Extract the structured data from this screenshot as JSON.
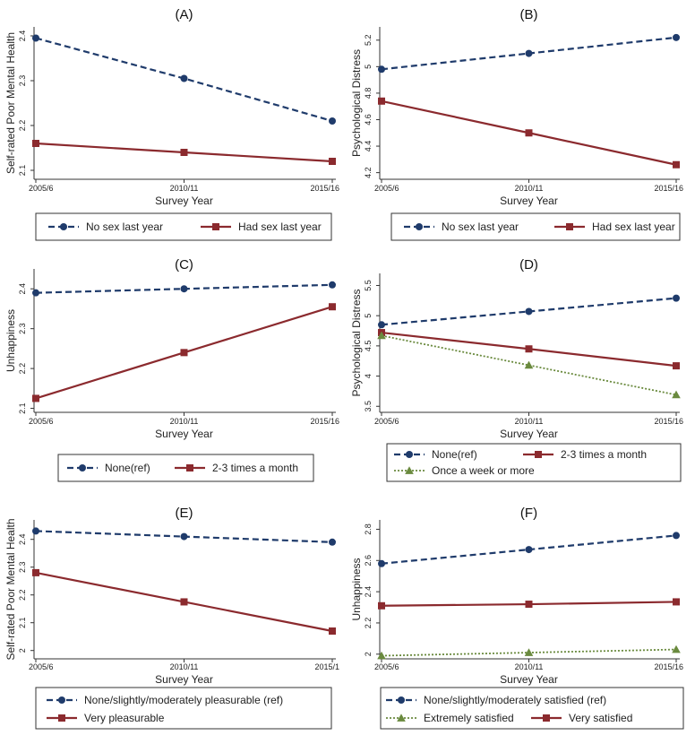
{
  "colors": {
    "blue": "#1f3b6b",
    "red": "#8b2a2e",
    "green": "#6a8a3e"
  },
  "chart_data": [
    {
      "id": "A",
      "type": "line",
      "title": "(A)",
      "ylabel": "Self-rated Poor Mental Health",
      "xlabel": "Survey Year",
      "categories": [
        "2005/6",
        "2010/11",
        "2015/16"
      ],
      "ylim": [
        2.08,
        2.42
      ],
      "yticks": [
        2.1,
        2.2,
        2.3,
        2.4
      ],
      "series": [
        {
          "name": "No sex last year",
          "style": "dash",
          "marker": "circle",
          "color": "#1f3b6b",
          "values": [
            2.395,
            2.305,
            2.21
          ]
        },
        {
          "name": "Had sex last year",
          "style": "solid",
          "marker": "square",
          "color": "#8b2a2e",
          "values": [
            2.16,
            2.14,
            2.12
          ]
        }
      ],
      "legend": [
        {
          "name": "No sex last year",
          "style": "dash",
          "marker": "circle",
          "color": "#1f3b6b"
        },
        {
          "name": "Had sex last year",
          "style": "solid",
          "marker": "square",
          "color": "#8b2a2e"
        }
      ]
    },
    {
      "id": "B",
      "type": "line",
      "title": "(B)",
      "ylabel": "Psychological Distress",
      "xlabel": "Survey Year",
      "categories": [
        "2005/6",
        "2010/11",
        "2015/16"
      ],
      "ylim": [
        4.15,
        5.3
      ],
      "yticks": [
        4.2,
        4.4,
        4.6,
        4.8,
        5,
        5.2
      ],
      "series": [
        {
          "name": "No sex last year",
          "style": "dash",
          "marker": "circle",
          "color": "#1f3b6b",
          "values": [
            4.98,
            5.1,
            5.22
          ]
        },
        {
          "name": "Had sex last year",
          "style": "solid",
          "marker": "square",
          "color": "#8b2a2e",
          "values": [
            4.74,
            4.5,
            4.26
          ]
        }
      ],
      "legend": [
        {
          "name": "No sex last year",
          "style": "dash",
          "marker": "circle",
          "color": "#1f3b6b"
        },
        {
          "name": "Had sex last year",
          "style": "solid",
          "marker": "square",
          "color": "#8b2a2e"
        }
      ]
    },
    {
      "id": "C",
      "type": "line",
      "title": "(C)",
      "ylabel": "Unhappiness",
      "xlabel": "Survey Year",
      "categories": [
        "2005/6",
        "2010/11",
        "2015/16"
      ],
      "ylim": [
        2.09,
        2.45
      ],
      "yticks": [
        2.1,
        2.2,
        2.3,
        2.4
      ],
      "series": [
        {
          "name": "None(ref)",
          "style": "dash",
          "marker": "circle",
          "color": "#1f3b6b",
          "values": [
            2.39,
            2.4,
            2.41
          ]
        },
        {
          "name": "2-3 times a month",
          "style": "solid",
          "marker": "square",
          "color": "#8b2a2e",
          "values": [
            2.125,
            2.24,
            2.355
          ]
        }
      ],
      "legend": [
        {
          "name": "None(ref)",
          "style": "dash",
          "marker": "circle",
          "color": "#1f3b6b"
        },
        {
          "name": "2-3 times a month",
          "style": "solid",
          "marker": "square",
          "color": "#8b2a2e"
        }
      ]
    },
    {
      "id": "D",
      "type": "line",
      "title": "(D)",
      "ylabel": "Psychological Distress",
      "xlabel": "Survey Year",
      "categories": [
        "2005/6",
        "2010/11",
        "2015/16"
      ],
      "ylim": [
        3.4,
        5.7
      ],
      "yticks": [
        3.5,
        4,
        4.5,
        5,
        5.5
      ],
      "series": [
        {
          "name": "None(ref)",
          "style": "dash",
          "marker": "circle",
          "color": "#1f3b6b",
          "values": [
            4.85,
            5.07,
            5.29
          ]
        },
        {
          "name": "2-3 times a month",
          "style": "solid",
          "marker": "square",
          "color": "#8b2a2e",
          "values": [
            4.72,
            4.45,
            4.17
          ]
        },
        {
          "name": "Once a week or more",
          "style": "dot",
          "marker": "triangle",
          "color": "#6a8a3e",
          "values": [
            4.67,
            4.18,
            3.69
          ]
        }
      ],
      "legend": [
        {
          "name": "None(ref)",
          "style": "dash",
          "marker": "circle",
          "color": "#1f3b6b"
        },
        {
          "name": "2-3 times a month",
          "style": "solid",
          "marker": "square",
          "color": "#8b2a2e"
        },
        {
          "name": "Once a week or more",
          "style": "dot",
          "marker": "triangle",
          "color": "#6a8a3e"
        }
      ]
    },
    {
      "id": "E",
      "type": "line",
      "title": "(E)",
      "ylabel": "Self-rated Poor Mental Health",
      "xlabel": "Survey Year",
      "categories": [
        "2005/6",
        "2010/11",
        "2015/1"
      ],
      "ylim": [
        1.97,
        2.47
      ],
      "yticks": [
        2,
        2.1,
        2.2,
        2.3,
        2.4
      ],
      "series": [
        {
          "name": "None/slightly/moderately pleasurable (ref)",
          "style": "dash",
          "marker": "circle",
          "color": "#1f3b6b",
          "values": [
            2.43,
            2.41,
            2.39
          ]
        },
        {
          "name": "Very pleasurable",
          "style": "solid",
          "marker": "square",
          "color": "#8b2a2e",
          "values": [
            2.28,
            2.175,
            2.07
          ]
        }
      ],
      "legend": [
        {
          "name": "None/slightly/moderately pleasurable (ref)",
          "style": "dash",
          "marker": "circle",
          "color": "#1f3b6b"
        },
        {
          "name": "Very pleasurable",
          "style": "solid",
          "marker": "square",
          "color": "#8b2a2e"
        }
      ]
    },
    {
      "id": "F",
      "type": "line",
      "title": "(F)",
      "ylabel": "Unhappiness",
      "xlabel": "Survey Year",
      "categories": [
        "2005/6",
        "2010/11",
        "2015/16"
      ],
      "ylim": [
        1.97,
        2.86
      ],
      "yticks": [
        2,
        2.2,
        2.4,
        2.6,
        2.8
      ],
      "series": [
        {
          "name": "None/slightly/moderately satisfied (ref)",
          "style": "dash",
          "marker": "circle",
          "color": "#1f3b6b",
          "values": [
            2.58,
            2.67,
            2.76
          ]
        },
        {
          "name": "Very satisfied",
          "style": "solid",
          "marker": "square",
          "color": "#8b2a2e",
          "values": [
            2.31,
            2.32,
            2.335
          ]
        },
        {
          "name": "Extremely satisfied",
          "style": "dot",
          "marker": "triangle",
          "color": "#6a8a3e",
          "values": [
            1.99,
            2.01,
            2.03
          ]
        }
      ],
      "legend": [
        {
          "name": "None/slightly/moderately satisfied (ref)",
          "style": "dash",
          "marker": "circle",
          "color": "#1f3b6b"
        },
        {
          "name": "Extremely satisfied",
          "style": "dot",
          "marker": "triangle",
          "color": "#6a8a3e"
        },
        {
          "name": "Very satisfied",
          "style": "solid",
          "marker": "square",
          "color": "#8b2a2e"
        }
      ]
    }
  ]
}
